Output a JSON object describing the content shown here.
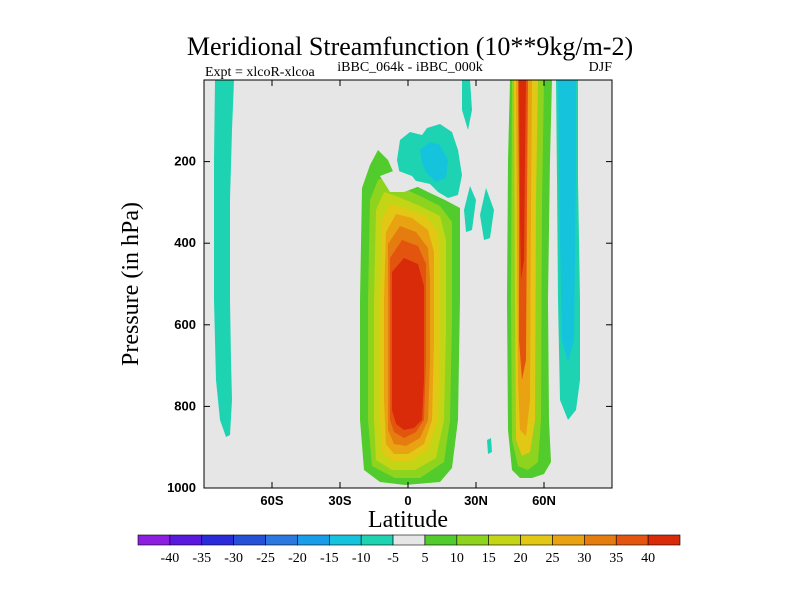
{
  "chart_data": {
    "type": "heatmap",
    "title": "Meridional Streamfunction (10**9kg/m-2)",
    "subtitle_left": "Expt = xlcoR-xlcoa",
    "subtitle_center": "iBBC_064k - iBBC_000k",
    "subtitle_right": "DJF",
    "xlabel": "Latitude",
    "ylabel": "Pressure (in hPa)",
    "xlim": [
      -90,
      90
    ],
    "ylim": [
      1000,
      0
    ],
    "x_ticks": [
      {
        "value": -60,
        "label": "60S"
      },
      {
        "value": -30,
        "label": "30S"
      },
      {
        "value": 0,
        "label": "0"
      },
      {
        "value": 30,
        "label": "30N"
      },
      {
        "value": 60,
        "label": "60N"
      }
    ],
    "y_ticks": [
      {
        "value": 200,
        "label": "200"
      },
      {
        "value": 400,
        "label": "400"
      },
      {
        "value": 600,
        "label": "600"
      },
      {
        "value": 800,
        "label": "800"
      },
      {
        "value": 1000,
        "label": "1000"
      }
    ],
    "colorbar": {
      "labels": [
        "-40",
        "-35",
        "-30",
        "-25",
        "-20",
        "-15",
        "-10",
        "-5",
        "5",
        "10",
        "15",
        "20",
        "25",
        "30",
        "35",
        "40"
      ],
      "colors": [
        "#8d1fe0",
        "#5b18de",
        "#2a2bd9",
        "#2750d8",
        "#2b78e0",
        "#1a9de8",
        "#15c3dc",
        "#1ed3b2",
        "#e6e6e6",
        "#52cc2c",
        "#8ed41e",
        "#c3d515",
        "#e2c714",
        "#e9a211",
        "#e57c10",
        "#e3550e",
        "#d92b0a"
      ]
    },
    "features": [
      {
        "name": "cell-60S-band",
        "level": -5,
        "lat_range": [
          -85,
          -78
        ],
        "pressure_range": [
          0,
          870
        ]
      },
      {
        "name": "cell-equatorial-core",
        "level": 40,
        "lat_range": [
          -8,
          8
        ],
        "pressure_range": [
          380,
          880
        ]
      },
      {
        "name": "cell-equatorial-outer",
        "level": 5,
        "lat_range": [
          -20,
          24
        ],
        "pressure_range": [
          170,
          980
        ]
      },
      {
        "name": "cell-upper-negative",
        "level": -10,
        "lat_range": [
          -5,
          25
        ],
        "pressure_range": [
          50,
          300
        ]
      },
      {
        "name": "cell-50N-band",
        "level": 40,
        "lat_range": [
          48,
          54
        ],
        "pressure_range": [
          0,
          980
        ]
      },
      {
        "name": "cell-60N-negative",
        "level": -5,
        "lat_range": [
          67,
          78
        ],
        "pressure_range": [
          0,
          800
        ]
      }
    ]
  }
}
